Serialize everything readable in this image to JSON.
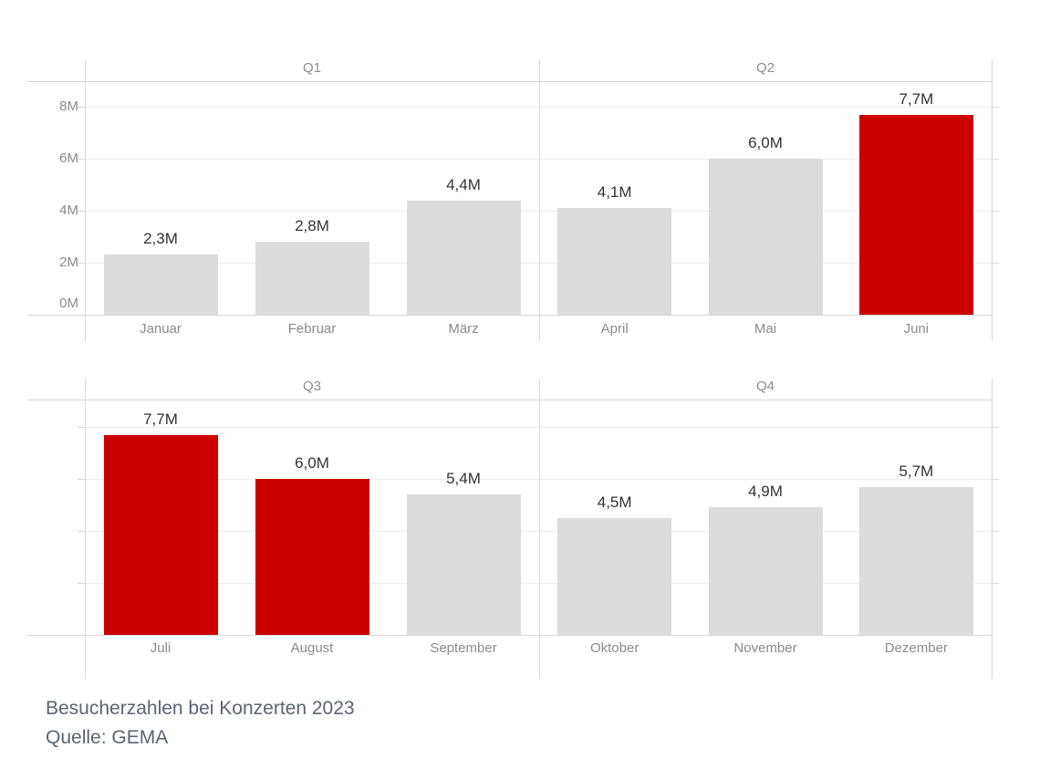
{
  "caption": {
    "title": "Besucherzahlen bei Konzerten 2023",
    "source": "Quelle: GEMA"
  },
  "chart_data": {
    "type": "bar",
    "title": "Besucherzahlen bei Konzerten 2023",
    "source": "Quelle: GEMA",
    "layout": "small-multiples 2x2 by quarter, shared y scale, grid on, no legend",
    "unit": "millions of visitors",
    "ylim": [
      0,
      8.9
    ],
    "y_ticks": [
      {
        "value": 0,
        "label": "0M"
      },
      {
        "value": 2,
        "label": "2M"
      },
      {
        "value": 4,
        "label": "4M"
      },
      {
        "value": 6,
        "label": "6M"
      },
      {
        "value": 8,
        "label": "8M"
      }
    ],
    "colors": {
      "bar": "#dcdcdc",
      "highlight": "#cc0000",
      "value_label": "#333333",
      "axis_text": "#8b8b8b",
      "caption_text": "#5b6472",
      "axis_line": "#d7d7d7",
      "gridline": "#ededed"
    },
    "panels": [
      {
        "label": "Q1",
        "months": [
          {
            "name": "Januar",
            "value": 2.3,
            "value_label": "2,3M",
            "highlight": false
          },
          {
            "name": "Februar",
            "value": 2.8,
            "value_label": "2,8M",
            "highlight": false
          },
          {
            "name": "März",
            "value": 4.4,
            "value_label": "4,4M",
            "highlight": false
          }
        ]
      },
      {
        "label": "Q2",
        "months": [
          {
            "name": "April",
            "value": 4.1,
            "value_label": "4,1M",
            "highlight": false
          },
          {
            "name": "Mai",
            "value": 6.0,
            "value_label": "6,0M",
            "highlight": false
          },
          {
            "name": "Juni",
            "value": 7.7,
            "value_label": "7,7M",
            "highlight": true
          }
        ]
      },
      {
        "label": "Q3",
        "months": [
          {
            "name": "Juli",
            "value": 7.7,
            "value_label": "7,7M",
            "highlight": true
          },
          {
            "name": "August",
            "value": 6.0,
            "value_label": "6,0M",
            "highlight": true
          },
          {
            "name": "September",
            "value": 5.4,
            "value_label": "5,4M",
            "highlight": false
          }
        ]
      },
      {
        "label": "Q4",
        "months": [
          {
            "name": "Oktober",
            "value": 4.5,
            "value_label": "4,5M",
            "highlight": false
          },
          {
            "name": "November",
            "value": 4.9,
            "value_label": "4,9M",
            "highlight": false
          },
          {
            "name": "Dezember",
            "value": 5.7,
            "value_label": "5,7M",
            "highlight": false
          }
        ]
      }
    ]
  }
}
